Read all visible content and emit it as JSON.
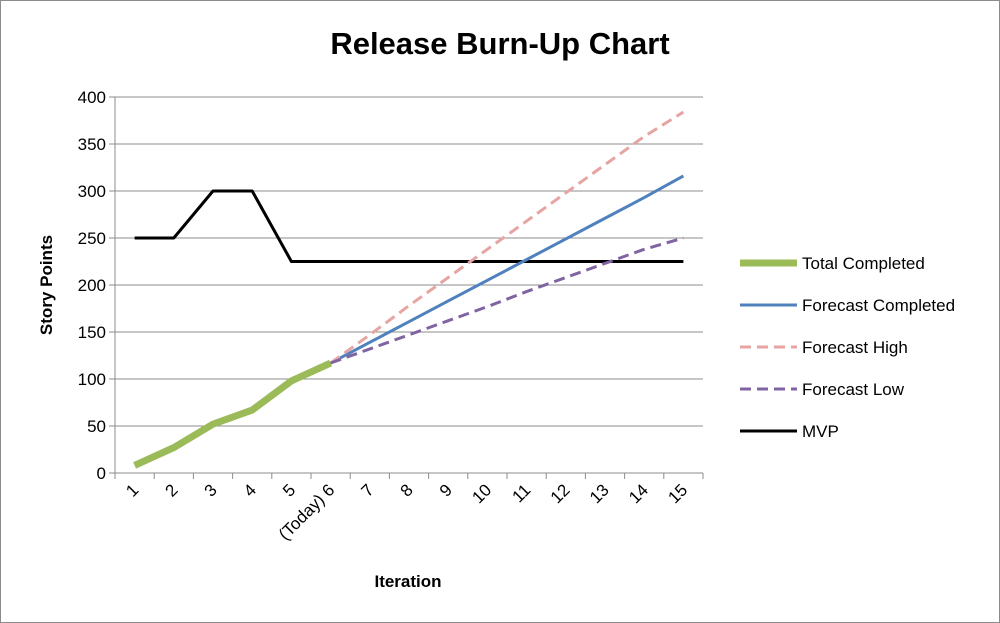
{
  "chart_data": {
    "type": "line",
    "title": "Release Burn-Up Chart",
    "xlabel": "Iteration",
    "ylabel": "Story Points",
    "categories": [
      "1",
      "2",
      "3",
      "4",
      "5",
      "(Today) 6",
      "7",
      "8",
      "9",
      "10",
      "11",
      "12",
      "13",
      "14",
      "15"
    ],
    "ylim": [
      0,
      400
    ],
    "yticks": [
      0,
      50,
      100,
      150,
      200,
      250,
      300,
      350,
      400
    ],
    "grid": true,
    "legend_position": "right",
    "series": [
      {
        "name": "Total Completed",
        "color": "#9bbb59",
        "style": "solid",
        "width": "thick",
        "values": [
          8,
          27,
          52,
          67,
          98,
          117,
          null,
          null,
          null,
          null,
          null,
          null,
          null,
          null,
          null
        ]
      },
      {
        "name": "Forecast Completed",
        "color": "#4f81bd",
        "style": "solid",
        "width": "normal",
        "values": [
          null,
          null,
          null,
          null,
          null,
          117,
          139,
          161,
          183,
          205,
          227,
          249,
          271,
          293,
          316
        ]
      },
      {
        "name": "Forecast High",
        "color": "#e6a5a2",
        "style": "dashed",
        "width": "normal",
        "values": [
          null,
          null,
          null,
          null,
          null,
          117,
          147,
          178,
          208,
          238,
          268,
          298,
          328,
          358,
          384
        ]
      },
      {
        "name": "Forecast Low",
        "color": "#8064a2",
        "style": "dashed",
        "width": "normal",
        "values": [
          null,
          null,
          null,
          null,
          null,
          117,
          132,
          147,
          162,
          177,
          193,
          208,
          223,
          238,
          250
        ]
      },
      {
        "name": "MVP",
        "color": "#000000",
        "style": "solid",
        "width": "normal",
        "values": [
          250,
          250,
          300,
          300,
          225,
          225,
          225,
          225,
          225,
          225,
          225,
          225,
          225,
          225,
          225
        ]
      }
    ]
  }
}
